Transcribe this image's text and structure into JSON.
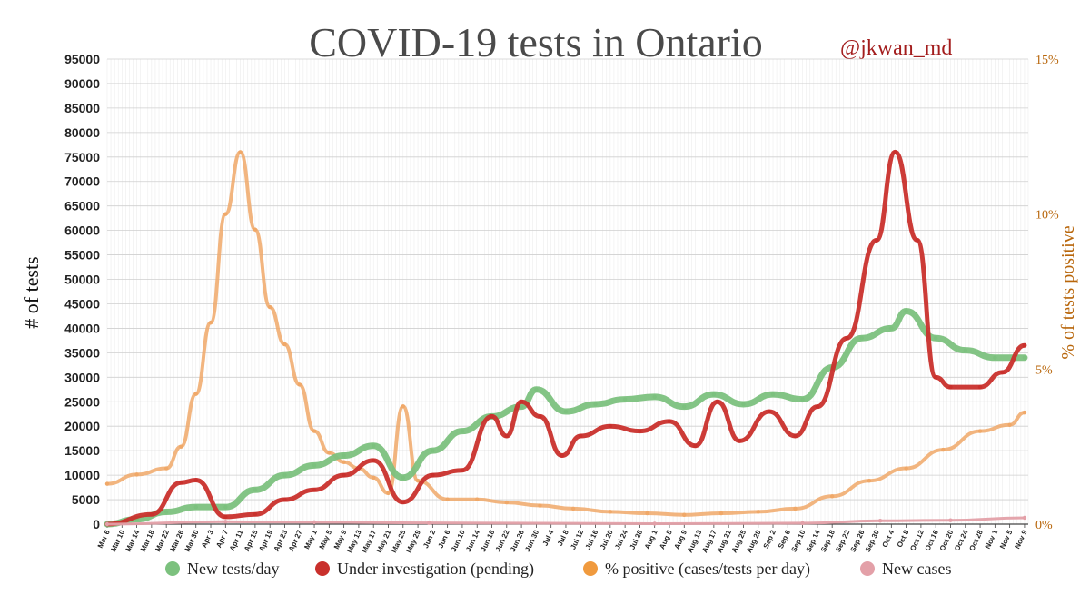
{
  "chart_data": {
    "type": "line",
    "title": "COVID-19 tests in Ontario",
    "annotation": "@jkwan_md",
    "ylabel": "# of tests",
    "y2label": "% of tests positive",
    "ylim": [
      0,
      95000
    ],
    "y2lim": [
      0,
      15
    ],
    "yticks": [
      "0",
      "5000",
      "10000",
      "15000",
      "20000",
      "25000",
      "30000",
      "35000",
      "40000",
      "45000",
      "50000",
      "55000",
      "60000",
      "65000",
      "70000",
      "75000",
      "80000",
      "85000",
      "90000",
      "95000"
    ],
    "y2ticks": [
      "0%",
      "5%",
      "10%",
      "15%"
    ],
    "x_start": "Mar 6",
    "x_days": 249,
    "xticks": [
      "Mar 6",
      "Mar 10",
      "Mar 14",
      "Mar 18",
      "Mar 22",
      "Mar 26",
      "Mar 30",
      "Apr 3",
      "Apr 7",
      "Apr 11",
      "Apr 15",
      "Apr 19",
      "Apr 23",
      "Apr 27",
      "May 1",
      "May 5",
      "May 9",
      "May 13",
      "May 17",
      "May 21",
      "May 25",
      "May 29",
      "Jun 2",
      "Jun 6",
      "Jun 10",
      "Jun 14",
      "Jun 18",
      "Jun 22",
      "Jun 26",
      "Jun 30",
      "Jul 4",
      "Jul 8",
      "Jul 12",
      "Jul 16",
      "Jul 20",
      "Jul 24",
      "Jul 28",
      "Aug 1",
      "Aug 5",
      "Aug 9",
      "Aug 13",
      "Aug 17",
      "Aug 21",
      "Aug 25",
      "Aug 29",
      "Sep 2",
      "Sep 6",
      "Sep 10",
      "Sep 14",
      "Sep 18",
      "Sep 22",
      "Sep 26",
      "Sep 30",
      "Oct 4",
      "Oct 8",
      "Oct 12",
      "Oct 16",
      "Oct 20",
      "Oct 24",
      "Oct 28",
      "Nov 1",
      "Nov 5",
      "Nov 9"
    ],
    "grid": true,
    "legend_position": "bottom",
    "series": [
      {
        "name": "New tests/day",
        "axis": "left",
        "color": "#7cc17e",
        "x": [
          "Mar 6",
          "Mar 14",
          "Mar 22",
          "Mar 30",
          "Apr 7",
          "Apr 15",
          "Apr 23",
          "May 1",
          "May 9",
          "May 17",
          "May 25",
          "Jun 2",
          "Jun 10",
          "Jun 18",
          "Jun 26",
          "Jun 30",
          "Jul 8",
          "Jul 16",
          "Jul 24",
          "Aug 1",
          "Aug 9",
          "Aug 17",
          "Aug 25",
          "Sep 2",
          "Sep 10",
          "Sep 18",
          "Sep 26",
          "Oct 4",
          "Oct 8",
          "Oct 16",
          "Oct 24",
          "Nov 1",
          "Nov 9"
        ],
        "values": [
          0,
          1000,
          2500,
          3500,
          3500,
          7000,
          10000,
          12000,
          14000,
          16000,
          9500,
          15000,
          19000,
          22000,
          24000,
          27500,
          23000,
          24500,
          25500,
          26000,
          24000,
          26500,
          24500,
          26500,
          25500,
          32000,
          38000,
          40000,
          43500,
          38000,
          35500,
          34000,
          34000
        ]
      },
      {
        "name": "Under investigation (pending)",
        "axis": "left",
        "color": "#c9302c",
        "x": [
          "Mar 6",
          "Mar 18",
          "Mar 26",
          "Mar 30",
          "Apr 7",
          "Apr 15",
          "Apr 23",
          "May 1",
          "May 9",
          "May 17",
          "May 25",
          "Jun 2",
          "Jun 10",
          "Jun 18",
          "Jun 22",
          "Jun 26",
          "Jul 1",
          "Jul 7",
          "Jul 12",
          "Jul 20",
          "Jul 28",
          "Aug 5",
          "Aug 12",
          "Aug 18",
          "Aug 24",
          "Sep 1",
          "Sep 8",
          "Sep 14",
          "Sep 22",
          "Sep 30",
          "Oct 5",
          "Oct 11",
          "Oct 16",
          "Oct 20",
          "Oct 28",
          "Nov 3",
          "Nov 9"
        ],
        "values": [
          0,
          2000,
          8500,
          9000,
          1500,
          2000,
          5000,
          7000,
          10000,
          13000,
          4500,
          10000,
          11000,
          22000,
          18000,
          25000,
          22000,
          14000,
          18000,
          20000,
          19000,
          21000,
          16000,
          25000,
          17000,
          23000,
          18000,
          24000,
          38000,
          58000,
          76000,
          58000,
          30000,
          28000,
          28000,
          31000,
          36500
        ]
      },
      {
        "name": "% positive (cases/tests per day)",
        "axis": "right",
        "unit": "%",
        "color": "#f0a868",
        "x": [
          "Mar 6",
          "Mar 14",
          "Mar 22",
          "Mar 26",
          "Mar 30",
          "Apr 3",
          "Apr 7",
          "Apr 11",
          "Apr 15",
          "Apr 19",
          "Apr 23",
          "Apr 27",
          "May 1",
          "May 5",
          "May 9",
          "May 13",
          "May 17",
          "May 21",
          "May 25",
          "May 29",
          "Jun 6",
          "Jun 14",
          "Jun 22",
          "Jul 1",
          "Jul 10",
          "Jul 20",
          "Jul 30",
          "Aug 9",
          "Aug 19",
          "Aug 29",
          "Sep 8",
          "Sep 18",
          "Sep 28",
          "Oct 8",
          "Oct 18",
          "Oct 28",
          "Nov 5",
          "Nov 9"
        ],
        "values": [
          1.3,
          1.6,
          1.8,
          2.5,
          4.2,
          6.5,
          10.0,
          12.0,
          9.5,
          7.0,
          5.8,
          4.5,
          3.0,
          2.3,
          2.0,
          1.8,
          1.5,
          1.0,
          3.8,
          1.4,
          0.8,
          0.8,
          0.7,
          0.6,
          0.5,
          0.4,
          0.35,
          0.3,
          0.35,
          0.4,
          0.5,
          0.9,
          1.4,
          1.8,
          2.4,
          3.0,
          3.2,
          3.6
        ]
      },
      {
        "name": "New cases",
        "axis": "left",
        "color": "#e3a0a8",
        "x": [
          "Mar 6",
          "Apr 7",
          "May 1",
          "Jun 1",
          "Aug 1",
          "Sep 10",
          "Oct 1",
          "Oct 20",
          "Nov 9"
        ],
        "values": [
          0,
          500,
          400,
          250,
          100,
          200,
          700,
          800,
          1300
        ]
      }
    ]
  }
}
